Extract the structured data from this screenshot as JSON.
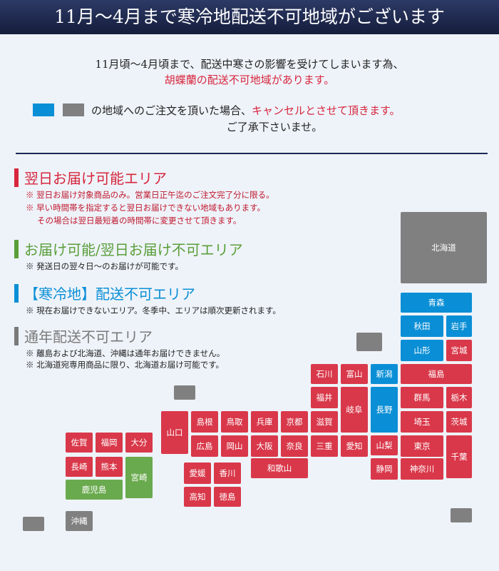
{
  "header": {
    "title": "11月～4月まで寒冷地配送不可地域がございます"
  },
  "intro": {
    "line1": "11月頃～4月頃まで、配送中寒さの影響を受けてしまいます為、",
    "line2": "胡蝶蘭の配送不可地域があります。",
    "line3_black": "の地域へのご注文を頂いた場合、",
    "line3_red": "キャンセルとさせて頂きます。",
    "line4": "ご了承下さいませ。"
  },
  "legend": [
    {
      "title": "翌日お届け可能エリア",
      "notes": [
        "※ 翌日お届け対象商品のみ。営業日正午迄のご注文完了分に限る。",
        "※ 早い時間帯を指定すると翌日お届けできない地域もあります。",
        "その場合は翌日最短着の時間帯に変更させて頂きます。"
      ]
    },
    {
      "title": "お届け可能/翌日お届け不可エリア",
      "notes": [
        "※ 発送日の翌々日～のお届けが可能です。"
      ]
    },
    {
      "title": "【寒冷地】配送不可エリア",
      "notes": [
        "※ 現在お届けできないエリア。冬季中、エリアは順次更新されます。"
      ]
    },
    {
      "title": "通年配送不可エリア",
      "notes": [
        "※ 離島および北海道、沖縄は通年お届けできません。",
        "※ 北海道宛専用商品に限り、北海道お届け可能です。"
      ]
    }
  ],
  "prefectures": [
    "北海道",
    "青森",
    "秋田",
    "岩手",
    "山形",
    "宮城",
    "福島",
    "群馬",
    "栃木",
    "埼玉",
    "茨城",
    "東京",
    "千葉",
    "神奈川",
    "新潟",
    "長野",
    "山梨",
    "静岡",
    "石川",
    "富山",
    "福井",
    "岐阜",
    "滋賀",
    "三重",
    "愛知",
    "京都",
    "奈良",
    "兵庫",
    "大阪",
    "和歌山",
    "鳥取",
    "岡山",
    "島根",
    "広島",
    "山口",
    "愛媛",
    "香川",
    "高知",
    "徳島",
    "佐賀",
    "福岡",
    "大分",
    "長崎",
    "熊本",
    "宮崎",
    "鹿児島",
    "沖縄"
  ]
}
